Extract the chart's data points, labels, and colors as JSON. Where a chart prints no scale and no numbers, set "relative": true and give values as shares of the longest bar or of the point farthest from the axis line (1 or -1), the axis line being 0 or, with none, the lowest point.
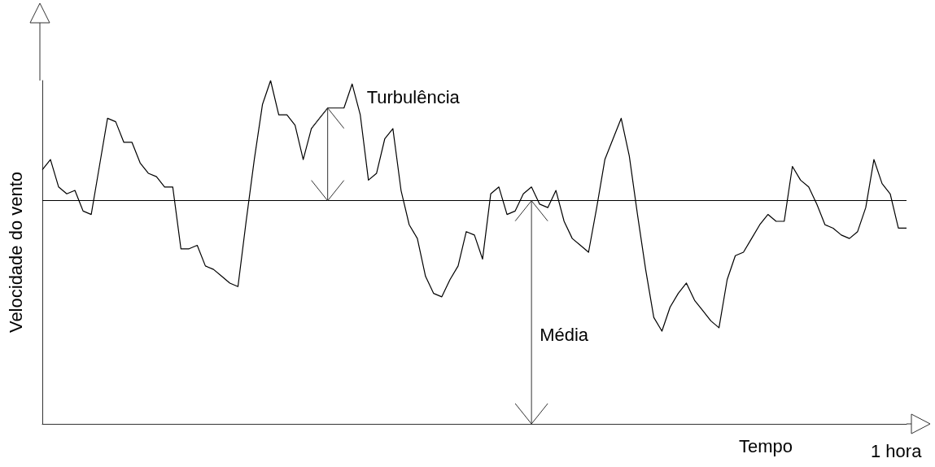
{
  "chart_data": {
    "type": "line",
    "xlabel": "Tempo",
    "ylabel": "Velocidade do vento",
    "annotations": [
      "Turbulência",
      "Média",
      "1 hora"
    ],
    "relative": true,
    "marker": "none",
    "line_style": "solid",
    "categories": [
      null,
      null,
      null,
      null,
      null,
      null,
      null,
      null,
      null,
      null,
      null,
      null,
      null,
      null,
      null,
      null,
      null,
      null,
      null,
      null,
      null,
      null,
      null,
      null,
      null,
      null,
      null,
      null,
      null,
      null,
      null,
      null,
      null,
      null,
      null,
      null,
      null,
      null,
      null,
      null,
      null,
      null,
      null,
      null,
      null,
      null,
      null,
      null,
      null,
      null,
      null,
      null,
      null,
      null,
      null,
      null,
      null,
      null,
      null,
      null,
      null,
      null,
      null,
      null,
      null,
      null,
      null,
      null,
      null,
      null,
      null,
      null,
      null,
      null,
      null,
      null,
      null,
      null,
      null,
      null,
      null,
      null,
      null,
      null,
      null,
      null,
      null,
      null,
      null,
      null,
      null,
      null,
      null,
      null,
      null,
      null,
      null,
      null,
      null,
      null,
      null,
      null,
      null,
      null,
      null,
      null,
      null
    ],
    "series": [
      {
        "color": "#000000",
        "values": [
          0.74,
          0.77,
          0.69,
          0.67,
          0.68,
          0.62,
          0.61,
          0.75,
          0.89,
          0.88,
          0.82,
          0.82,
          0.76,
          0.73,
          0.72,
          0.69,
          0.69,
          0.51,
          0.51,
          0.52,
          0.46,
          0.45,
          0.43,
          0.41,
          0.4,
          0.59,
          0.77,
          0.93,
          1.0,
          0.9,
          0.9,
          0.87,
          0.77,
          0.86,
          0.89,
          0.92,
          0.92,
          0.92,
          0.99,
          0.9,
          0.71,
          0.73,
          0.83,
          0.86,
          0.68,
          0.58,
          0.54,
          0.43,
          0.38,
          0.37,
          0.42,
          0.46,
          0.56,
          0.55,
          0.48,
          0.67,
          0.69,
          0.61,
          0.62,
          0.67,
          0.69,
          0.64,
          0.63,
          0.68,
          0.59,
          0.54,
          0.52,
          0.5,
          0.63,
          0.77,
          0.83,
          0.89,
          0.78,
          0.61,
          0.45,
          0.31,
          0.27,
          0.34,
          0.38,
          0.41,
          0.36,
          0.33,
          0.3,
          0.28,
          0.42,
          0.49,
          0.5,
          0.54,
          0.58,
          0.61,
          0.59,
          0.59,
          0.75,
          0.71,
          0.69,
          0.64,
          0.58,
          0.57,
          0.55,
          0.54,
          0.56,
          0.63,
          0.77,
          0.7,
          0.67,
          0.57,
          0.57
        ]
      }
    ],
    "ref_lines": [
      {
        "axis": "y",
        "value": 0.65,
        "color": "#000000"
      }
    ]
  }
}
